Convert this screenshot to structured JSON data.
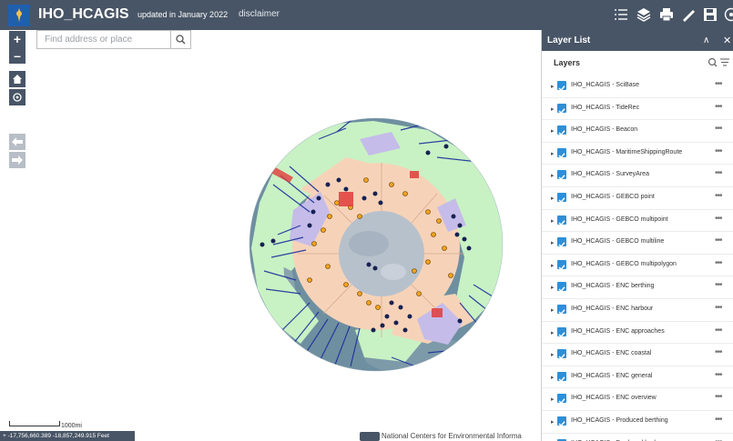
{
  "header": {
    "title": "IHO_HCAGIS",
    "updated": "updated in January 2022",
    "disclaimer": "disclaimer",
    "tools": [
      "layer-list-icon",
      "layers-icon",
      "print-icon",
      "measure-icon",
      "save-icon",
      "more-icon"
    ]
  },
  "search": {
    "placeholder": "Find address or place"
  },
  "map": {
    "zoom_in": "+",
    "zoom_out": "–",
    "scale_label": "1000mi",
    "coordinates": "+ -17,756,660.389 -18,857,249.915 Feet",
    "attribution": "National Centers for Environmental Informa",
    "colors": {
      "land": "#c8f2c4",
      "eez": "#f6d3b8",
      "polar_center": "#b7c1cc",
      "survey": "#c5bce9",
      "imagery": "#6e8fa0",
      "tracks": "#1b2f9a",
      "points_orange": "#f4a21b",
      "points_dark": "#182153",
      "highlight_red": "#e23b3b"
    }
  },
  "panel": {
    "title": "Layer List",
    "subtitle": "Layers",
    "layers": [
      "IHO_HCAGIS - SciBase",
      "IHO_HCAGIS - TideRec",
      "IHO_HCAGIS - Beacon",
      "IHO_HCAGIS - MaritimeShippingRoute",
      "IHO_HCAGIS - SurveyArea",
      "IHO_HCAGIS - GEBCO point",
      "IHO_HCAGIS - GEBCO multipoint",
      "IHO_HCAGIS - GEBCO multiline",
      "IHO_HCAGIS - GEBCO multipolygon",
      "IHO_HCAGIS - ENC berthing",
      "IHO_HCAGIS - ENC harbour",
      "IHO_HCAGIS - ENC approaches",
      "IHO_HCAGIS - ENC coastal",
      "IHO_HCAGIS - ENC general",
      "IHO_HCAGIS - ENC overview",
      "IHO_HCAGIS - Produced berthing",
      "IHO_HCAGIS - Produced harbour"
    ]
  }
}
